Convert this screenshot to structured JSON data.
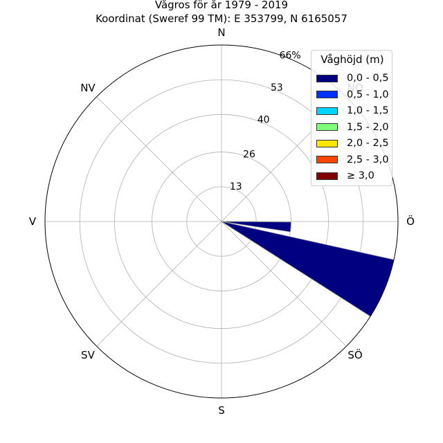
{
  "title": {
    "line1": "Vågros för år 1979 - 2019",
    "line2": "Koordinat (Sweref 99 TM): E 353799, N 6165057"
  },
  "chart_data": {
    "type": "polar_bar",
    "title": "Vågros för år 1979 - 2019",
    "subtitle": "Koordinat (Sweref 99 TM): E 353799, N 6165057",
    "directions": [
      "N",
      "NO",
      "Ö",
      "SÖ",
      "S",
      "SV",
      "V",
      "NV"
    ],
    "direction_angles_deg": [
      0,
      45,
      90,
      135,
      180,
      225,
      270,
      315
    ],
    "r_ticks": [
      13,
      26,
      40,
      53,
      66
    ],
    "r_tick_labels": [
      "13",
      "26",
      "40",
      "53",
      "66%"
    ],
    "r_max": 66,
    "legend_title": "Våghöjd (m)",
    "series": [
      {
        "name": "0,0 - 0,5",
        "color": "#000080"
      },
      {
        "name": "0,5 - 1,0",
        "color": "#0030ff"
      },
      {
        "name": "1,0 - 1,5",
        "color": "#00d4ff"
      },
      {
        "name": "1,5 - 2,0",
        "color": "#7dff7a"
      },
      {
        "name": "2,0 - 2,5",
        "color": "#ffe600"
      },
      {
        "name": "2,5 - 3,0",
        "color": "#ff4500"
      },
      {
        "name": "≥ 3,0",
        "color": "#800000"
      }
    ],
    "bars": [
      {
        "direction": "Ö",
        "center_deg": 94.5,
        "width_deg": 8,
        "values": [
          26,
          0,
          0,
          0,
          0,
          0,
          0
        ]
      },
      {
        "direction": "Ö-SÖ",
        "center_deg": 112.5,
        "width_deg": 20,
        "values": [
          66,
          0,
          0,
          0,
          0,
          0,
          0
        ]
      }
    ],
    "grid": true
  }
}
